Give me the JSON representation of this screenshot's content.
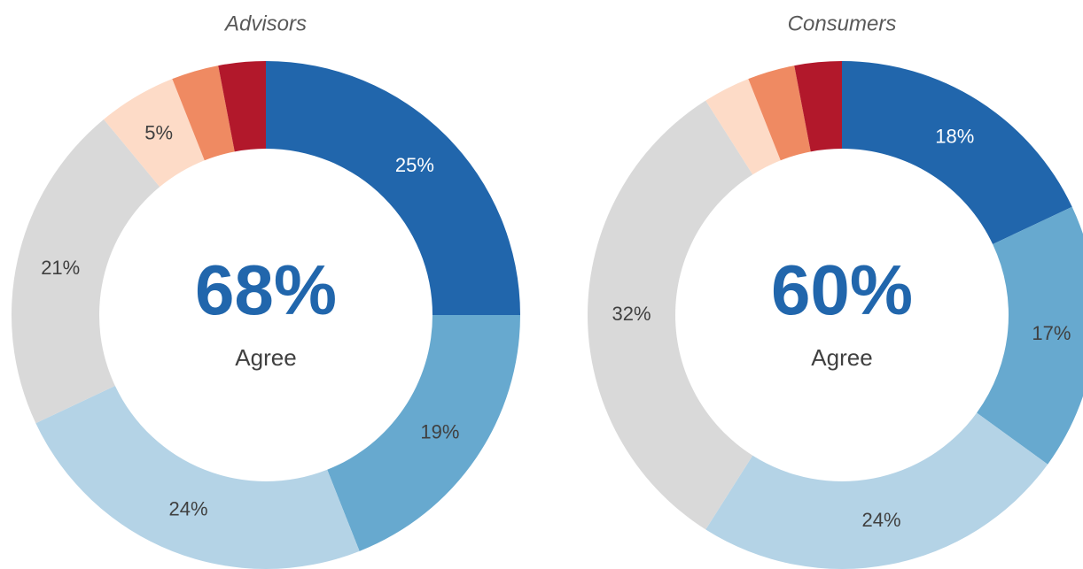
{
  "chart_data": [
    {
      "type": "donut",
      "title": "Advisors",
      "center_text": "68%",
      "center_label": "Agree",
      "values": [
        25,
        19,
        24,
        21,
        5,
        3,
        3
      ],
      "value_labels": [
        "25%",
        "19%",
        "24%",
        "21%",
        "5%",
        null,
        null
      ],
      "colors": [
        "#2166ac",
        "#67a9cf",
        "#b4d3e6",
        "#d9d9d9",
        "#fddbc7",
        "#ef8a62",
        "#b2182b"
      ]
    },
    {
      "type": "donut",
      "title": "Consumers",
      "center_text": "60%",
      "center_label": "Agree",
      "values": [
        18,
        17,
        24,
        32,
        3,
        3,
        3
      ],
      "value_labels": [
        "18%",
        "17%",
        "24%",
        "32%",
        null,
        null,
        null
      ],
      "colors": [
        "#2166ac",
        "#67a9cf",
        "#b4d3e6",
        "#d9d9d9",
        "#fddbc7",
        "#ef8a62",
        "#b2182b"
      ]
    }
  ]
}
